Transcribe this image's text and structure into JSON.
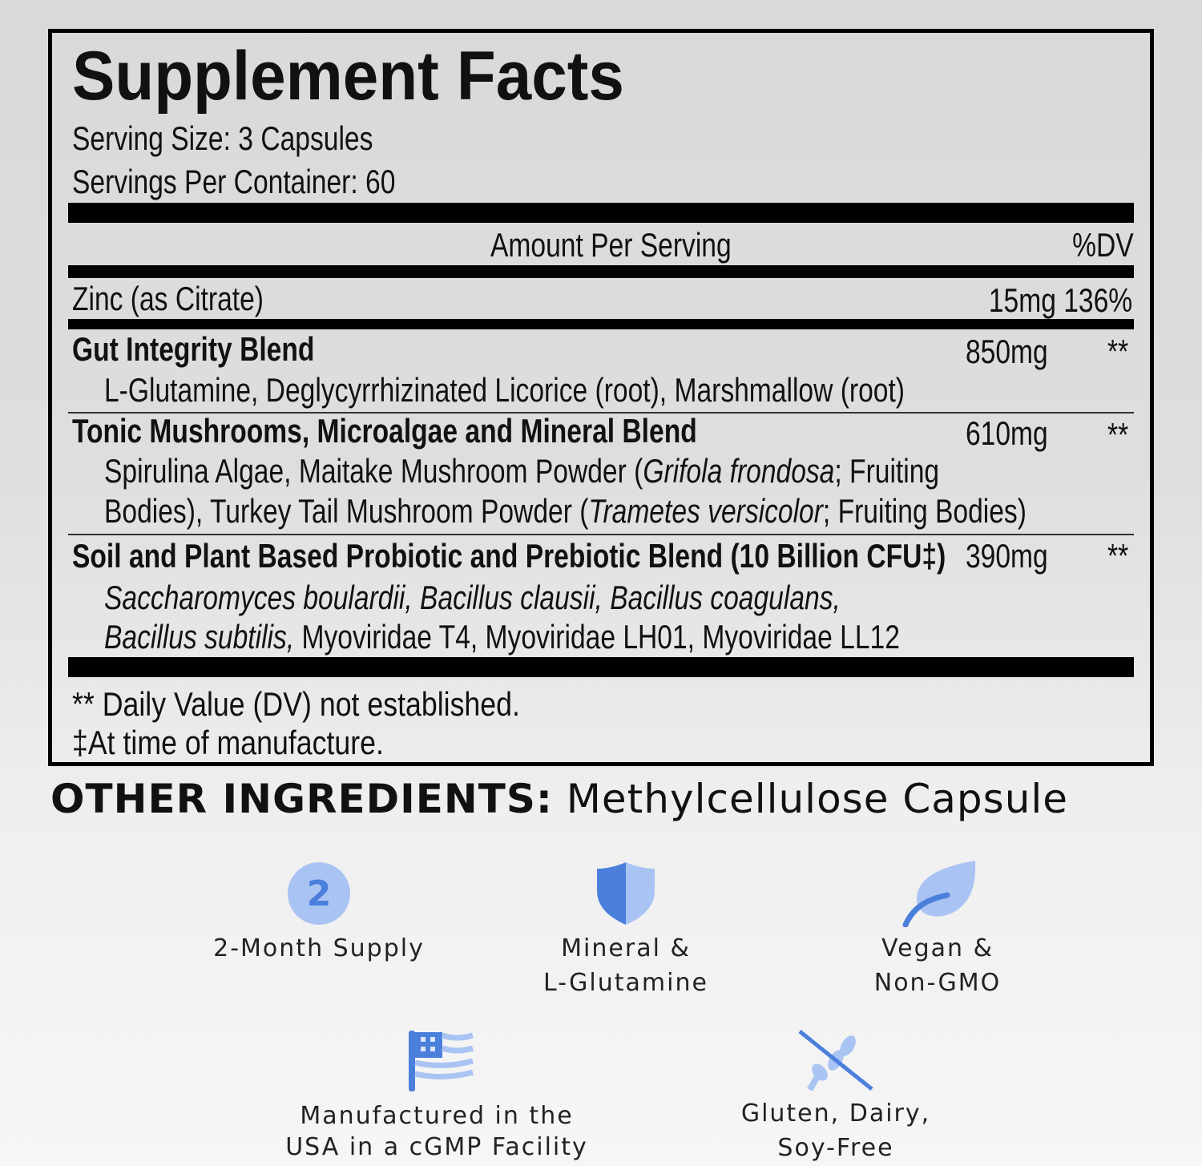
{
  "panel": {
    "title": "Supplement Facts",
    "serving_size": "Serving Size: 3 Capsules",
    "servings_per_container": "Servings Per Container: 60",
    "header_amount": "Amount Per Serving",
    "header_dv": "%DV",
    "zinc": {
      "name": "Zinc (as Citrate)",
      "amount": "15mg 136%"
    },
    "blends": [
      {
        "name": "Gut Integrity Blend",
        "amount": "850mg",
        "dv": "**",
        "lines": [
          "L-Glutamine, Deglycyrrhizinated Licorice (root), Marshmallow (root)"
        ]
      },
      {
        "name": "Tonic Mushrooms, Microalgae and Mineral Blend",
        "amount": "610mg",
        "dv": "**",
        "lines": [
          [
            "Spirulina Algae, Maitake Mushroom Powder (",
            "Grifola frondosa",
            "; Fruiting"
          ],
          [
            "Bodies), Turkey Tail Mushroom Powder (",
            "Trametes versicolor",
            "; Fruiting Bodies)"
          ]
        ]
      },
      {
        "name": "Soil and Plant Based Probiotic and Prebiotic Blend (10 Billion CFU‡)",
        "amount": "390mg",
        "dv": "**",
        "lines": [
          [
            "Saccharomyces boulardii, Bacillus clausii, Bacillus coagulans,"
          ],
          [
            "Bacillus subtilis,",
            " Myoviridae T4, Myoviridae LH01, Myoviridae LL12"
          ]
        ]
      }
    ],
    "footnote_dv": "** Daily Value (DV) not established.",
    "footnote_mfg": "‡At time of manufacture."
  },
  "other_ingredients": {
    "label": "OTHER INGREDIENTS:",
    "value": " Methylcellulose Capsule"
  },
  "badges": [
    {
      "icon": "number-2-circle-icon",
      "glyph": "2",
      "label": [
        "2-Month Supply"
      ]
    },
    {
      "icon": "shield-icon",
      "label": [
        "Mineral &",
        "L-Glutamine"
      ]
    },
    {
      "icon": "leaf-icon",
      "label": [
        "Vegan &",
        "Non-GMO"
      ]
    },
    {
      "icon": "us-flag-icon",
      "label": [
        "Manufactured in the",
        "USA in a cGMP Facility"
      ]
    },
    {
      "icon": "no-wheat-icon",
      "label": [
        "Gluten, Dairy,",
        "Soy-Free"
      ]
    }
  ],
  "colors": {
    "icon_dark": "#4a7fdc",
    "icon_light": "#a9c3f3"
  }
}
